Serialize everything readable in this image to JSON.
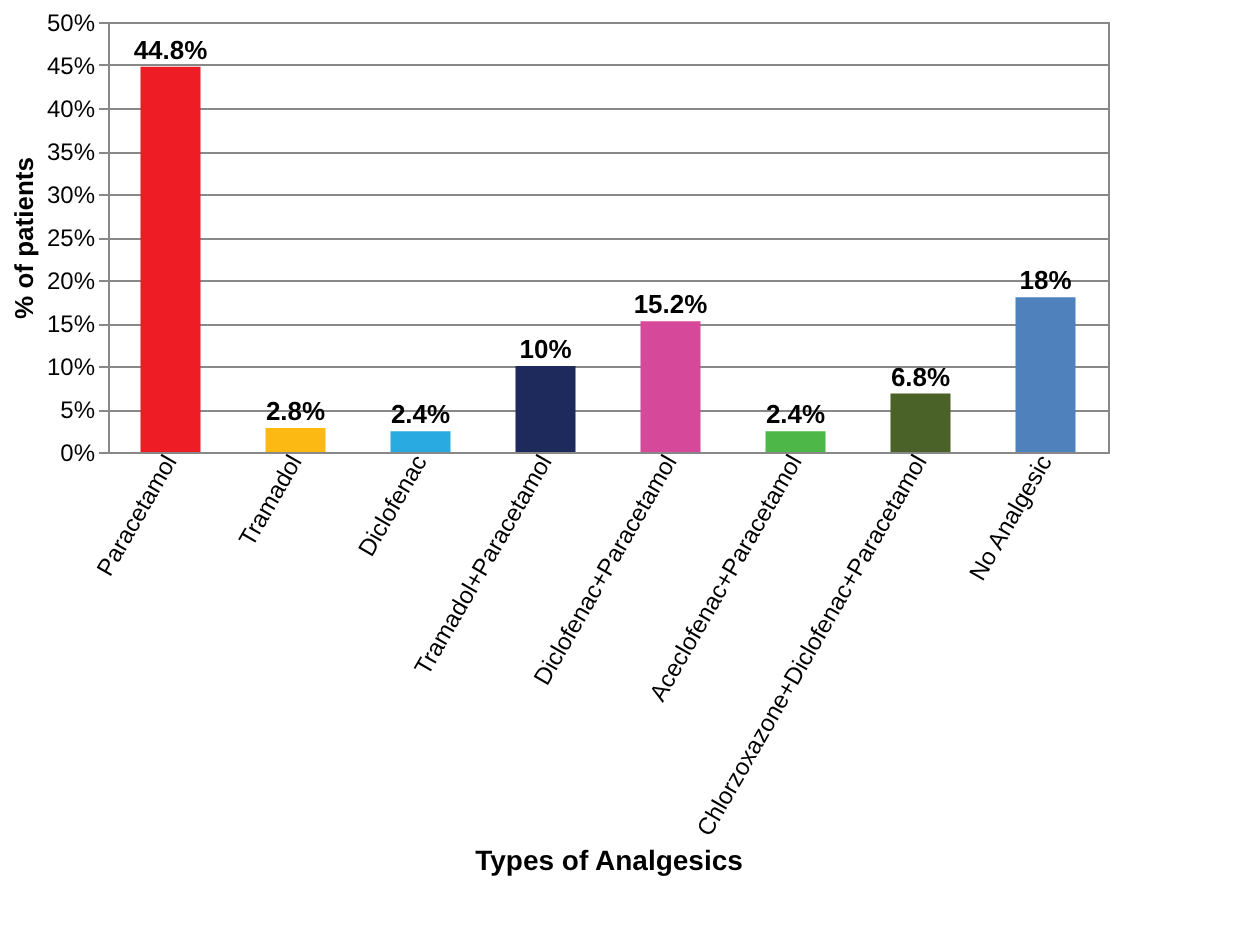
{
  "chart_data": {
    "type": "bar",
    "xlabel": "Types of Analgesics",
    "ylabel": "% of patients",
    "categories": [
      "Paracetamol",
      "Tramadol",
      "Diclofenac",
      "Tramadol+Paracetamol",
      "Diclofenac+Paracetamol",
      "Aceclofenac+Paracetamol",
      "Chlorzoxazone+Diclofenac+Paracetamol",
      "No Analgesic"
    ],
    "values": [
      44.8,
      2.8,
      2.4,
      10,
      15.2,
      2.4,
      6.8,
      18
    ],
    "value_labels": [
      "44.8%",
      "2.8%",
      "2.4%",
      "10%",
      "15.2%",
      "2.4%",
      "6.8%",
      "18%"
    ],
    "colors": [
      "#ee1c25",
      "#fdb913",
      "#29abe2",
      "#1f2a5c",
      "#d6489a",
      "#4db848",
      "#4a6127",
      "#4f81bd"
    ],
    "ylim": [
      0,
      50
    ],
    "yticks": [
      {
        "value": 0,
        "label": "0%"
      },
      {
        "value": 5,
        "label": "5%"
      },
      {
        "value": 10,
        "label": "10%"
      },
      {
        "value": 15,
        "label": "15%"
      },
      {
        "value": 20,
        "label": "20%"
      },
      {
        "value": 25,
        "label": "25%"
      },
      {
        "value": 30,
        "label": "30%"
      },
      {
        "value": 35,
        "label": "35%"
      },
      {
        "value": 40,
        "label": "40%"
      },
      {
        "value": 45,
        "label": "45%"
      },
      {
        "value": 50,
        "label": "50%"
      }
    ],
    "grid": "y"
  }
}
